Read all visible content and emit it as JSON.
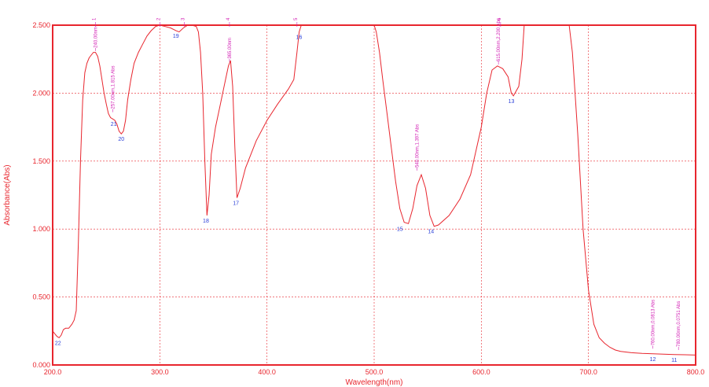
{
  "chart_data": {
    "type": "line",
    "title": "",
    "xlabel": "Wavelength(nm)",
    "ylabel": "Absorbance(Abs)",
    "xlim": [
      200.0,
      800.0
    ],
    "ylim": [
      0.0,
      2.5
    ],
    "grid": true,
    "x_ticks": [
      "200.0",
      "300.0",
      "400.0",
      "500.0",
      "600.0",
      "700.0",
      "800.0"
    ],
    "y_ticks": [
      "0.000",
      "0.500",
      "1.000",
      "1.500",
      "2.000",
      "2.500"
    ],
    "colors": {
      "frame": "#e8262e",
      "line": "#e8262e",
      "grid": "#e8262e",
      "peak_labels": "#2a3fd8",
      "annotations": "#d21fb4"
    },
    "series": [
      {
        "x": [
          200,
          202,
          204,
          206,
          208,
          210,
          212,
          215,
          218,
          220,
          222,
          224,
          226,
          228,
          230,
          232,
          234,
          236,
          238,
          240,
          242,
          244,
          246,
          248,
          250,
          252,
          254,
          256,
          258,
          260,
          262,
          264,
          266,
          268,
          270,
          273,
          276,
          280,
          284,
          288,
          292,
          296,
          300,
          305,
          310,
          315,
          318,
          322,
          326,
          330,
          334,
          336,
          338,
          340,
          342,
          344,
          346,
          348,
          352,
          356,
          360,
          364,
          366,
          368,
          370,
          372,
          375,
          380,
          390,
          400,
          410,
          420,
          425,
          428,
          430,
          432,
          435,
          440,
          450,
          460,
          470,
          480,
          490,
          495,
          498,
          500,
          502,
          505,
          508,
          512,
          516,
          520,
          524,
          528,
          532,
          536,
          540,
          544,
          548,
          552,
          556,
          560,
          570,
          580,
          590,
          600,
          605,
          610,
          615,
          620,
          625,
          628,
          630,
          635,
          638,
          640,
          642,
          650,
          660,
          670,
          680,
          682,
          685,
          690,
          695,
          700,
          705,
          710,
          715,
          720,
          725,
          730,
          740,
          750,
          760,
          770,
          780,
          790,
          800
        ],
        "y": [
          0.25,
          0.23,
          0.21,
          0.2,
          0.22,
          0.26,
          0.27,
          0.27,
          0.3,
          0.33,
          0.4,
          0.9,
          1.5,
          1.95,
          2.15,
          2.22,
          2.26,
          2.28,
          2.3,
          2.3,
          2.27,
          2.2,
          2.1,
          2.0,
          1.92,
          1.85,
          1.82,
          1.81,
          1.8,
          1.77,
          1.72,
          1.7,
          1.72,
          1.8,
          1.95,
          2.1,
          2.22,
          2.3,
          2.36,
          2.42,
          2.46,
          2.49,
          2.5,
          2.49,
          2.48,
          2.46,
          2.45,
          2.48,
          2.5,
          2.5,
          2.49,
          2.45,
          2.3,
          2.0,
          1.5,
          1.1,
          1.25,
          1.55,
          1.75,
          1.9,
          2.05,
          2.2,
          2.24,
          2.05,
          1.6,
          1.23,
          1.3,
          1.45,
          1.65,
          1.8,
          1.92,
          2.03,
          2.1,
          2.3,
          2.45,
          2.5,
          2.5,
          2.5,
          2.5,
          2.5,
          2.5,
          2.5,
          2.5,
          2.5,
          2.5,
          2.5,
          2.45,
          2.3,
          2.1,
          1.85,
          1.6,
          1.35,
          1.15,
          1.05,
          1.04,
          1.15,
          1.32,
          1.4,
          1.3,
          1.1,
          1.02,
          1.03,
          1.1,
          1.22,
          1.4,
          1.75,
          2.0,
          2.17,
          2.2,
          2.18,
          2.12,
          2.0,
          1.98,
          2.05,
          2.25,
          2.5,
          2.5,
          2.5,
          2.5,
          2.5,
          2.5,
          2.5,
          2.3,
          1.7,
          1.0,
          0.55,
          0.3,
          0.2,
          0.16,
          0.13,
          0.11,
          0.1,
          0.09,
          0.085,
          0.082,
          0.08,
          0.077,
          0.075,
          0.073
        ]
      }
    ],
    "peaks": [
      {
        "label": "1",
        "x": 240,
        "y": 2.5
      },
      {
        "label": "2",
        "x": 300,
        "y": 2.5
      },
      {
        "label": "3",
        "x": 323,
        "y": 2.5
      },
      {
        "label": "4",
        "x": 365,
        "y": 2.5
      },
      {
        "label": "5",
        "x": 428,
        "y": 2.5
      },
      {
        "label": "6",
        "x": 618,
        "y": 2.5
      }
    ],
    "valleys": [
      {
        "label": "22",
        "x": 205,
        "y": 0.2
      },
      {
        "label": "21",
        "x": 257,
        "y": 1.81
      },
      {
        "label": "20",
        "x": 264,
        "y": 1.7
      },
      {
        "label": "19",
        "x": 315,
        "y": 2.46
      },
      {
        "label": "18",
        "x": 343,
        "y": 1.1
      },
      {
        "label": "17",
        "x": 371,
        "y": 1.23
      },
      {
        "label": "16",
        "x": 430,
        "y": 2.45
      },
      {
        "label": "15",
        "x": 524,
        "y": 1.04
      },
      {
        "label": "14",
        "x": 553,
        "y": 1.02
      },
      {
        "label": "13",
        "x": 628,
        "y": 1.98
      },
      {
        "label": "12",
        "x": 760,
        "y": 0.08
      },
      {
        "label": "11",
        "x": 780,
        "y": 0.075
      }
    ],
    "annotations": [
      {
        "text": "257.00nm,1.815 Abs",
        "x": 256,
        "y": 1.86
      },
      {
        "text": "240.00nm",
        "x": 240,
        "y": 2.31
      },
      {
        "text": "365.00nm",
        "x": 365,
        "y": 2.23
      },
      {
        "text": "540.00nm,1.397 Abs",
        "x": 540,
        "y": 1.43
      },
      {
        "text": "615.00nm,2.200 Abs",
        "x": 616,
        "y": 2.21
      },
      {
        "text": "760.00nm,0.0813 Abs",
        "x": 760,
        "y": 0.12
      },
      {
        "text": "780.00nm,0.0751 Abs",
        "x": 784,
        "y": 0.11
      }
    ]
  }
}
